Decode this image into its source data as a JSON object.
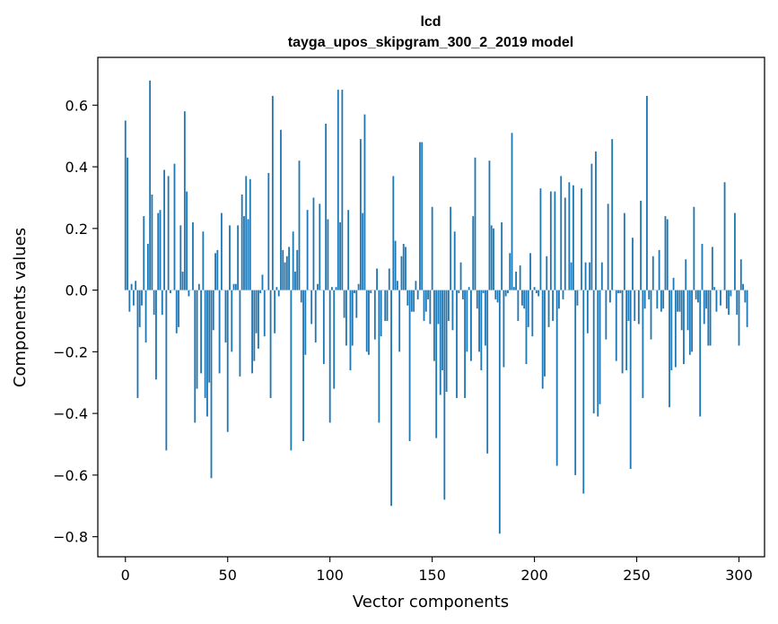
{
  "chart_data": {
    "type": "bar",
    "title": "lcd",
    "subtitle": "tayga_upos_skipgram_300_2_2019 model",
    "xlabel": "Vector components",
    "ylabel": "Components values",
    "xlim": [
      -13.5,
      312.5
    ],
    "ylim": [
      -0.865,
      0.755
    ],
    "xticks": [
      0,
      50,
      100,
      150,
      200,
      250,
      300
    ],
    "yticks": [
      -0.8,
      -0.6,
      -0.4,
      -0.2,
      0.0,
      0.2,
      0.4,
      0.6
    ],
    "ytick_labels": [
      "−0.8",
      "−0.6",
      "−0.4",
      "−0.2",
      "0.0",
      "0.2",
      "0.4",
      "0.6"
    ],
    "grid": false,
    "bar_color": "#1f77b4",
    "values": [
      0.55,
      0.43,
      -0.07,
      0.02,
      -0.05,
      0.03,
      -0.35,
      -0.12,
      -0.05,
      0.24,
      -0.17,
      0.15,
      0.68,
      0.31,
      -0.08,
      -0.29,
      0.25,
      0.26,
      -0.08,
      0.39,
      -0.52,
      0.37,
      -0.01,
      0.0,
      0.41,
      -0.14,
      -0.12,
      0.21,
      0.06,
      0.58,
      0.32,
      -0.02,
      0.0,
      0.22,
      -0.43,
      -0.32,
      0.02,
      -0.27,
      0.19,
      -0.35,
      -0.41,
      -0.3,
      -0.61,
      -0.13,
      0.12,
      0.13,
      -0.27,
      0.25,
      0.0,
      -0.17,
      -0.46,
      0.21,
      -0.2,
      0.02,
      0.02,
      0.21,
      -0.28,
      0.31,
      0.24,
      0.37,
      0.23,
      0.36,
      -0.27,
      -0.23,
      -0.14,
      -0.19,
      -0.01,
      0.05,
      -0.15,
      0.0,
      0.38,
      -0.35,
      0.63,
      -0.14,
      0.01,
      -0.02,
      0.52,
      0.13,
      0.09,
      0.11,
      0.14,
      -0.52,
      0.19,
      0.06,
      0.13,
      0.42,
      -0.04,
      -0.49,
      -0.21,
      0.26,
      0.0,
      -0.11,
      0.3,
      -0.17,
      0.02,
      0.28,
      0.0,
      -0.24,
      0.54,
      0.23,
      -0.43,
      0.01,
      -0.32,
      0.01,
      0.65,
      0.22,
      0.65,
      -0.09,
      -0.18,
      0.26,
      -0.26,
      -0.18,
      -0.01,
      -0.09,
      0.02,
      0.49,
      0.25,
      0.57,
      -0.2,
      -0.21,
      -0.01,
      0.0,
      -0.16,
      0.07,
      -0.43,
      -0.15,
      0.0,
      -0.1,
      -0.1,
      0.07,
      -0.7,
      0.37,
      0.16,
      0.03,
      -0.2,
      0.11,
      0.15,
      0.14,
      -0.05,
      -0.49,
      -0.07,
      -0.07,
      0.03,
      -0.03,
      0.48,
      0.48,
      -0.1,
      -0.07,
      -0.03,
      -0.11,
      0.27,
      -0.23,
      -0.48,
      -0.11,
      -0.34,
      -0.26,
      -0.68,
      -0.33,
      -0.1,
      0.27,
      -0.13,
      0.19,
      -0.35,
      -0.01,
      0.09,
      -0.03,
      -0.35,
      -0.2,
      0.01,
      -0.23,
      0.24,
      0.43,
      -0.06,
      -0.2,
      -0.26,
      -0.01,
      -0.18,
      -0.53,
      0.42,
      0.21,
      0.2,
      -0.03,
      -0.04,
      -0.79,
      0.22,
      -0.25,
      -0.02,
      -0.01,
      0.12,
      0.51,
      0.01,
      0.06,
      -0.1,
      0.08,
      -0.05,
      -0.06,
      -0.24,
      -0.12,
      0.12,
      -0.15,
      0.01,
      -0.01,
      -0.02,
      0.33,
      -0.32,
      -0.28,
      0.11,
      -0.12,
      0.32,
      -0.1,
      0.32,
      -0.57,
      -0.06,
      0.37,
      -0.03,
      0.3,
      0.0,
      0.35,
      0.09,
      0.34,
      -0.6,
      -0.05,
      0.0,
      0.33,
      -0.66,
      0.09,
      -0.14,
      0.09,
      0.41,
      -0.4,
      0.45,
      -0.41,
      -0.37,
      0.09,
      0.0,
      -0.16,
      0.28,
      -0.04,
      0.49,
      0.0,
      -0.23,
      -0.01,
      -0.01,
      -0.27,
      0.25,
      -0.26,
      -0.1,
      -0.58,
      0.17,
      -0.1,
      0.0,
      -0.11,
      0.29,
      -0.35,
      -0.06,
      0.63,
      -0.03,
      -0.16,
      0.11,
      0.0,
      -0.06,
      0.13,
      -0.07,
      -0.06,
      0.24,
      0.23,
      -0.38,
      -0.26,
      0.04,
      -0.25,
      -0.07,
      -0.07,
      -0.13,
      -0.24,
      0.1,
      -0.13,
      -0.21,
      -0.2,
      0.27,
      -0.03,
      -0.04,
      -0.41,
      0.15,
      -0.11,
      -0.06,
      -0.18,
      -0.18,
      0.14,
      0.01,
      -0.07,
      0.0,
      -0.05,
      0.0,
      0.35,
      -0.06,
      -0.08,
      -0.02,
      0.0,
      0.25,
      -0.08,
      -0.18,
      0.1,
      0.02,
      -0.04,
      -0.12
    ]
  }
}
